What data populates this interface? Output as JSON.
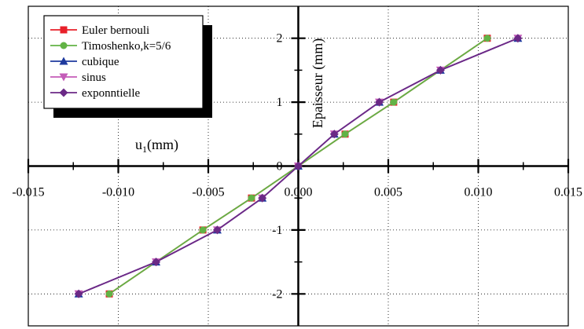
{
  "chart_data": {
    "type": "line",
    "xlabel": "u",
    "xlabel_sub": "1",
    "xlabel_unit": "(mm)",
    "ylabel": "Epaisseur (mm)",
    "xlim": [
      -0.015,
      0.015
    ],
    "ylim": [
      -2.5,
      2.5
    ],
    "x_ticks": [
      -0.015,
      -0.01,
      -0.005,
      0.0,
      0.005,
      0.01,
      0.015
    ],
    "x_tick_labels": [
      "-0.015",
      "-0.010",
      "-0.005",
      "0.000",
      "0.005",
      "0.010",
      "0.015"
    ],
    "y_ticks": [
      -2,
      -1,
      0,
      1,
      2
    ],
    "y_tick_labels": [
      "-2",
      "-1",
      "0",
      "1",
      "2"
    ],
    "grid": "dotted",
    "legend_position": "top-left",
    "series": [
      {
        "name": "Euler bernouli",
        "color": "#e8202a",
        "marker": "square",
        "x": [
          -0.0105,
          -0.0053,
          -0.0026,
          0.0,
          0.0026,
          0.0053,
          0.0105
        ],
        "y": [
          -2,
          -1,
          -0.5,
          0,
          0.5,
          1,
          2
        ]
      },
      {
        "name": "Timoshenko,k=5/6",
        "color": "#62b345",
        "marker": "circle",
        "x": [
          -0.0105,
          -0.0053,
          -0.0026,
          0.0,
          0.0026,
          0.0053,
          0.0105
        ],
        "y": [
          -2,
          -1,
          -0.5,
          0,
          0.5,
          1,
          2
        ]
      },
      {
        "name": "cubique",
        "color": "#1e3a9e",
        "marker": "triangle-up",
        "x": [
          -0.0122,
          -0.0079,
          -0.0045,
          -0.002,
          0.0,
          0.002,
          0.0045,
          0.0079,
          0.0122
        ],
        "y": [
          -2,
          -1.5,
          -1,
          -0.5,
          0,
          0.5,
          1,
          1.5,
          2
        ]
      },
      {
        "name": "sinus",
        "color": "#c45cb8",
        "marker": "triangle-down",
        "x": [
          -0.0122,
          -0.0079,
          -0.0045,
          -0.002,
          0.0,
          0.002,
          0.0045,
          0.0079,
          0.0122
        ],
        "y": [
          -2,
          -1.5,
          -1,
          -0.5,
          0,
          0.5,
          1,
          1.5,
          2
        ]
      },
      {
        "name": "exponntielle",
        "color": "#6b2a86",
        "marker": "diamond",
        "x": [
          -0.0122,
          -0.0079,
          -0.0045,
          -0.002,
          0.0,
          0.002,
          0.0045,
          0.0079,
          0.0122
        ],
        "y": [
          -2,
          -1.5,
          -1,
          -0.5,
          0,
          0.5,
          1,
          1.5,
          2
        ]
      }
    ]
  }
}
